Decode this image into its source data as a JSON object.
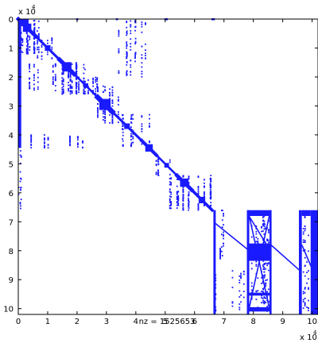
{
  "chart_data": {
    "type": "scatter",
    "plot_kind": "sparsity pattern (spy plot)",
    "xlabel": "nz = 1525653",
    "x_multiplier": "x 10",
    "x_multiplier_exp": "4",
    "y_multiplier": "x 10",
    "y_multiplier_exp": "4",
    "xlim": [
      0,
      10.2
    ],
    "ylim": [
      0,
      10.2
    ],
    "y_reversed": true,
    "x_ticks": [
      0,
      1,
      2,
      3,
      4,
      5,
      6,
      7,
      8,
      9,
      10
    ],
    "y_ticks": [
      0,
      1,
      2,
      3,
      4,
      5,
      6,
      7,
      8,
      9,
      10
    ],
    "x_tick_labels": [
      "0",
      "1",
      "2",
      "3",
      "4",
      "5",
      "6",
      "7",
      "8",
      "9",
      "10"
    ],
    "y_tick_labels": [
      "0",
      "1",
      "2",
      "3",
      "4",
      "5",
      "6",
      "7",
      "8",
      "9",
      "10"
    ],
    "marker_color": "#1a1aff",
    "grid": false,
    "solid_regions": [
      {
        "x0": 0.0,
        "x1": 0.1,
        "y0": 0.0,
        "y1": 4.45
      },
      {
        "x0": 6.64,
        "x1": 6.72,
        "y0": 6.6,
        "y1": 10.2
      },
      {
        "x0": 6.85,
        "x1": 6.9,
        "y0": 7.9,
        "y1": 8.3
      },
      {
        "x0": 7.78,
        "x1": 7.86,
        "y0": 6.6,
        "y1": 10.2
      },
      {
        "x0": 8.55,
        "x1": 8.62,
        "y0": 6.6,
        "y1": 10.2
      },
      {
        "x0": 7.8,
        "x1": 8.6,
        "y0": 6.6,
        "y1": 6.8
      },
      {
        "x0": 7.8,
        "x1": 8.6,
        "y0": 7.75,
        "y1": 8.35
      },
      {
        "x0": 7.8,
        "x1": 8.6,
        "y0": 9.45,
        "y1": 9.55
      },
      {
        "x0": 7.8,
        "x1": 8.6,
        "y0": 9.95,
        "y1": 10.1
      },
      {
        "x0": 9.55,
        "x1": 9.65,
        "y0": 6.6,
        "y1": 10.2
      },
      {
        "x0": 9.95,
        "x1": 10.2,
        "y0": 6.6,
        "y1": 10.2
      },
      {
        "x0": 9.65,
        "x1": 9.95,
        "y0": 6.6,
        "y1": 6.8
      },
      {
        "x0": 0.1,
        "x1": 0.35,
        "y0": 0.0,
        "y1": 0.25
      }
    ],
    "diagonal_blocks": [
      {
        "from": 0.0,
        "to": 0.6,
        "w": 0.09
      },
      {
        "from": 0.6,
        "to": 1.4,
        "w": 0.06
      },
      {
        "from": 1.4,
        "to": 1.9,
        "w": 0.1
      },
      {
        "from": 1.9,
        "to": 2.7,
        "w": 0.05
      },
      {
        "from": 2.7,
        "to": 3.2,
        "w": 0.12
      },
      {
        "from": 3.2,
        "to": 4.2,
        "w": 0.06
      },
      {
        "from": 4.2,
        "to": 4.7,
        "w": 0.08
      },
      {
        "from": 4.7,
        "to": 5.4,
        "w": 0.05
      },
      {
        "from": 5.4,
        "to": 5.9,
        "w": 0.09
      },
      {
        "from": 5.9,
        "to": 6.6,
        "w": 0.07
      }
    ],
    "line_segments": [
      {
        "x0": 6.7,
        "y0": 7.05,
        "x1": 7.8,
        "y1": 7.95
      },
      {
        "x0": 7.85,
        "y0": 6.8,
        "x1": 8.55,
        "y1": 7.95
      },
      {
        "x0": 8.6,
        "y0": 7.8,
        "x1": 9.6,
        "y1": 8.7
      },
      {
        "x0": 9.65,
        "y0": 7.8,
        "x1": 10.2,
        "y1": 9.1
      },
      {
        "x0": 7.82,
        "y0": 6.62,
        "x1": 8.58,
        "y1": 10.15
      },
      {
        "x0": 8.58,
        "y0": 6.62,
        "x1": 7.82,
        "y1": 10.15
      }
    ],
    "scatter_blocks": [
      {
        "x0": 0.25,
        "x1": 0.7,
        "y0": 0.05,
        "y1": 1.2,
        "n": 90
      },
      {
        "x0": 0.05,
        "x1": 0.4,
        "y0": 0.4,
        "y1": 1.2,
        "n": 50
      },
      {
        "x0": 1.3,
        "x1": 2.3,
        "y0": 1.5,
        "y1": 2.6,
        "n": 180
      },
      {
        "x0": 0.3,
        "x1": 1.3,
        "y0": 1.55,
        "y1": 2.5,
        "n": 60
      },
      {
        "x0": 0.6,
        "x1": 1.4,
        "y0": 0.6,
        "y1": 1.4,
        "n": 30
      },
      {
        "x0": 3.4,
        "x1": 4.4,
        "y0": 0.05,
        "y1": 2.0,
        "n": 100
      },
      {
        "x0": 2.0,
        "x1": 2.8,
        "y0": 2.0,
        "y1": 2.6,
        "n": 60
      },
      {
        "x0": 2.7,
        "x1": 3.5,
        "y0": 2.3,
        "y1": 3.6,
        "n": 110
      },
      {
        "x0": 0.3,
        "x1": 2.3,
        "y0": 4.0,
        "y1": 4.45,
        "n": 60
      },
      {
        "x0": 3.4,
        "x1": 4.6,
        "y0": 3.3,
        "y1": 4.4,
        "n": 70
      },
      {
        "x0": 5.0,
        "x1": 6.6,
        "y0": 5.4,
        "y1": 6.6,
        "n": 220
      },
      {
        "x0": 4.4,
        "x1": 5.2,
        "y0": 4.8,
        "y1": 5.4,
        "n": 30
      },
      {
        "x0": 6.7,
        "x1": 7.8,
        "y0": 8.6,
        "y1": 10.1,
        "n": 40
      },
      {
        "x0": 7.86,
        "x1": 8.55,
        "y0": 6.8,
        "y1": 10.1,
        "n": 180
      },
      {
        "x0": 9.65,
        "x1": 9.95,
        "y0": 6.8,
        "y1": 10.1,
        "n": 50
      },
      {
        "x0": 0.0,
        "x1": 0.15,
        "y0": 4.45,
        "y1": 6.6,
        "n": 20
      },
      {
        "x0": 6.8,
        "x1": 7.1,
        "y0": 6.6,
        "y1": 8.6,
        "n": 20
      }
    ],
    "top_row_points": [
      {
        "x": 2.0,
        "y": 0.0
      },
      {
        "x": 3.35,
        "y": 0.0
      },
      {
        "x": 5.0,
        "y": 0.0
      },
      {
        "x": 5.05,
        "y": 0.0
      },
      {
        "x": 6.6,
        "y": 0.0
      },
      {
        "x": 6.65,
        "y": 0.0
      }
    ]
  }
}
